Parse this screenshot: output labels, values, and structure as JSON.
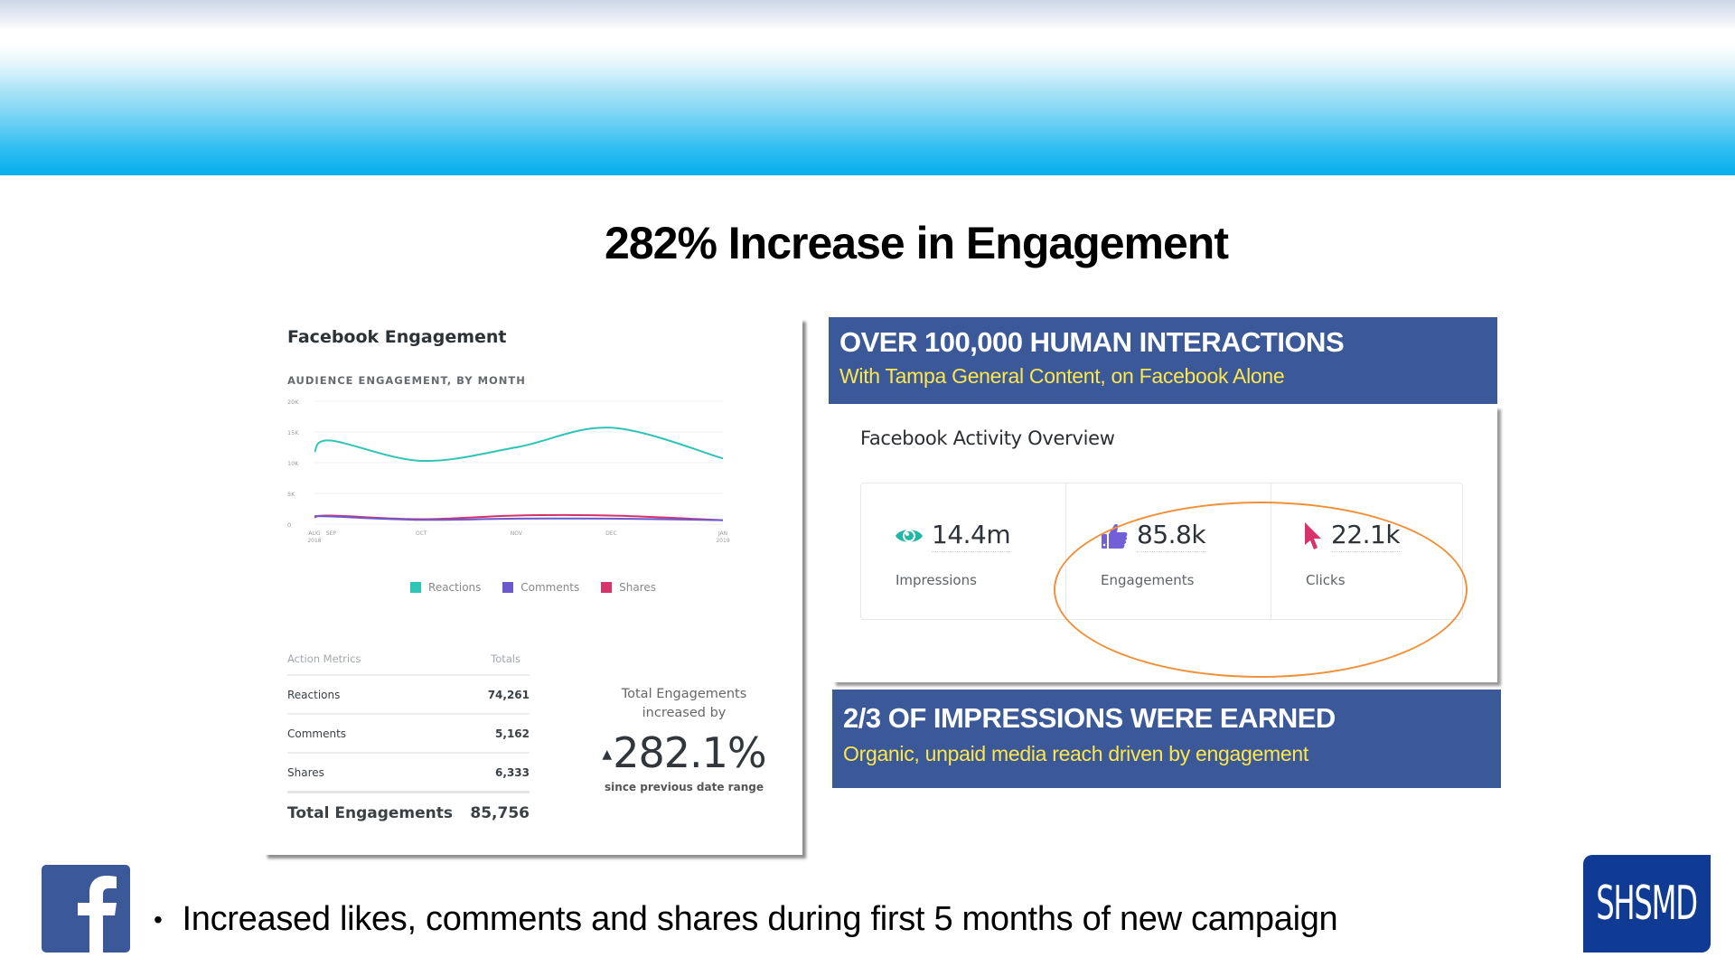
{
  "slide": {
    "title": "282% Increase in Engagement",
    "bullet": "Increased likes, comments and shares during first 5 months of new campaign"
  },
  "engagement_card": {
    "title": "Facebook Engagement",
    "subtitle": "AUDIENCE ENGAGEMENT, BY MONTH",
    "table": {
      "headers": [
        "Action Metrics",
        "Totals"
      ],
      "rows": [
        {
          "label": "Reactions",
          "value": "74,261"
        },
        {
          "label": "Comments",
          "value": "5,162"
        },
        {
          "label": "Shares",
          "value": "6,333"
        }
      ],
      "total_label": "Total Engagements",
      "total_value": "85,756"
    },
    "increase": {
      "label_line1": "Total Engagements",
      "label_line2": "increased by",
      "arrow": "▲",
      "value": "282.1%",
      "caption": "since previous date range"
    }
  },
  "chart_data": {
    "type": "line",
    "title": "AUDIENCE ENGAGEMENT, BY MONTH",
    "xlabel": "",
    "ylabel": "",
    "x": [
      "AUG 2018",
      "SEP",
      "OCT",
      "NOV",
      "DEC",
      "JAN 2019"
    ],
    "x_ticks": [
      {
        "line1": "AUG",
        "line2": "2018"
      },
      {
        "line1": "SEP",
        "line2": ""
      },
      {
        "line1": "OCT",
        "line2": ""
      },
      {
        "line1": "NOV",
        "line2": ""
      },
      {
        "line1": "DEC",
        "line2": ""
      },
      {
        "line1": "JAN",
        "line2": "2019"
      }
    ],
    "x_positions_days": [
      0,
      7,
      45,
      85,
      125,
      172
    ],
    "y_ticks": [
      "0",
      "5K",
      "10K",
      "15K",
      "20K"
    ],
    "y_tick_values": [
      0,
      5000,
      10000,
      15000,
      20000
    ],
    "ylim": [
      0,
      20000
    ],
    "grid": true,
    "legend_position": "bottom-center",
    "series": [
      {
        "name": "Reactions",
        "color": "#2ec4b6",
        "points": [
          [
            0,
            11800
          ],
          [
            7,
            13600
          ],
          [
            45,
            10300
          ],
          [
            85,
            12500
          ],
          [
            125,
            15700
          ],
          [
            172,
            10700
          ]
        ]
      },
      {
        "name": "Comments",
        "color": "#6a5acd",
        "points": [
          [
            0,
            1300
          ],
          [
            7,
            1250
          ],
          [
            45,
            700
          ],
          [
            85,
            900
          ],
          [
            125,
            900
          ],
          [
            172,
            650
          ]
        ]
      },
      {
        "name": "Shares",
        "color": "#d6336c",
        "points": [
          [
            0,
            1100
          ],
          [
            7,
            1400
          ],
          [
            45,
            800
          ],
          [
            85,
            1400
          ],
          [
            125,
            1400
          ],
          [
            172,
            650
          ]
        ]
      }
    ]
  },
  "right_panel": {
    "top_banner": {
      "headline": "OVER 100,000 HUMAN INTERACTIONS",
      "subline": "With Tampa General Content, on Facebook Alone"
    },
    "activity": {
      "title": "Facebook Activity Overview",
      "stats": [
        {
          "icon": "eye-icon",
          "value": "14.4m",
          "label": "Impressions",
          "color": "#1fb8a6"
        },
        {
          "icon": "thumbs-up-icon",
          "value": "85.8k",
          "label": "Engagements",
          "color": "#7360d8"
        },
        {
          "icon": "cursor-icon",
          "value": "22.1k",
          "label": "Clicks",
          "color": "#d6336c"
        }
      ]
    },
    "bottom_banner": {
      "headline": "2/3 OF IMPRESSIONS WERE EARNED",
      "subline": "Organic, unpaid media reach driven by engagement"
    }
  },
  "logos": {
    "facebook": "f",
    "shsmd": "SHSMD"
  },
  "colors": {
    "banner": "#3b5998",
    "banner_sub": "#fde74c",
    "highlight": "#f0913a",
    "shsmd": "#0f3b94"
  }
}
